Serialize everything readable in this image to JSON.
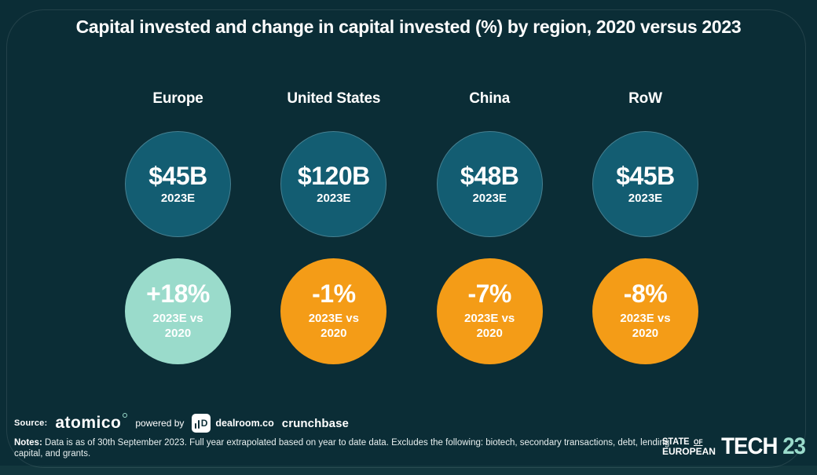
{
  "title": "Capital invested and change in capital invested (%) by region, 2020 versus 2023",
  "columns": [
    {
      "region": "Europe",
      "amount": "$45B",
      "amount_sub": "2023E",
      "change": "+18%",
      "change_sub_line1": "2023E vs",
      "change_sub_line2": "2020",
      "change_bg": "#9adbcb"
    },
    {
      "region": "United States",
      "amount": "$120B",
      "amount_sub": "2023E",
      "change": "-1%",
      "change_sub_line1": "2023E vs",
      "change_sub_line2": "2020",
      "change_bg": "#f49c17"
    },
    {
      "region": "China",
      "amount": "$48B",
      "amount_sub": "2023E",
      "change": "-7%",
      "change_sub_line1": "2023E vs",
      "change_sub_line2": "2020",
      "change_bg": "#f49c17"
    },
    {
      "region": "RoW",
      "amount": "$45B",
      "amount_sub": "2023E",
      "change": "-8%",
      "change_sub_line1": "2023E vs",
      "change_sub_line2": "2020",
      "change_bg": "#f49c17"
    }
  ],
  "footer": {
    "source_label": "Source:",
    "atomico": "atomico",
    "powered_by": "powered by",
    "dealroom_icon_text": "D",
    "dealroom": "dealroom.co",
    "crunchbase": "crunchbase",
    "notes_label": "Notes:",
    "notes_text": " Data is as of 30th September 2023. Full year extrapolated based on year to date data. Excludes the following: biotech, secondary transactions, debt, lending capital, and grants."
  },
  "brand": {
    "state": "STATE",
    "of": "OF",
    "european": "EUROPEAN",
    "tech": "TECH",
    "year": "23"
  },
  "colors": {
    "background": "#0b2d36",
    "amount_circle": "#135d72",
    "positive_change": "#9adbcb",
    "negative_change": "#f49c17",
    "text": "#ffffff",
    "brand_accent": "#9adbcb"
  },
  "chart_data": {
    "type": "table",
    "title": "Capital invested and change in capital invested (%) by region, 2020 versus 2023",
    "categories": [
      "Europe",
      "United States",
      "China",
      "RoW"
    ],
    "series": [
      {
        "name": "Capital invested 2023E ($B)",
        "values": [
          45,
          120,
          48,
          45
        ]
      },
      {
        "name": "Change in capital invested 2023E vs 2020 (%)",
        "values": [
          18,
          -1,
          -7,
          -8
        ]
      }
    ],
    "legend_position": "none",
    "grid": false
  }
}
